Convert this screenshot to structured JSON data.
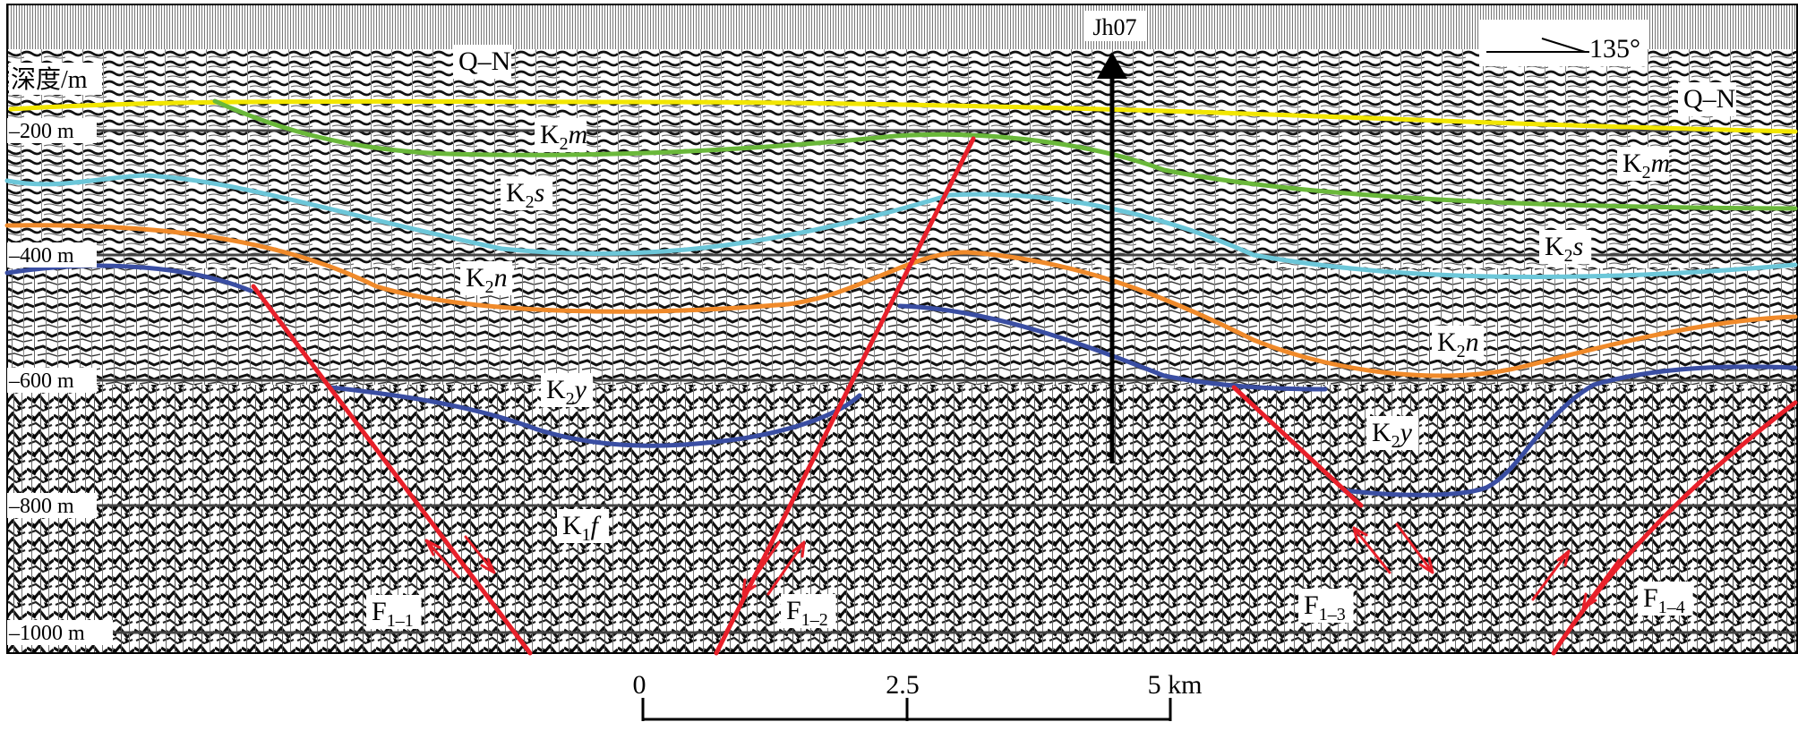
{
  "depth_axis": {
    "title": "深度/m",
    "ticks": [
      "200 m",
      "400 m",
      "600 m",
      "800 m",
      "1000 m"
    ]
  },
  "well": {
    "label": "Jh07"
  },
  "orientation": {
    "label": "135°"
  },
  "formation_labels": [
    {
      "text": "Q–N"
    },
    {
      "text": "Q–N"
    },
    {
      "text": "K",
      "sub": "2",
      "it": "m"
    },
    {
      "text": "K",
      "sub": "2",
      "it": "m"
    },
    {
      "text": "K",
      "sub": "2",
      "it": "s"
    },
    {
      "text": "K",
      "sub": "2",
      "it": "s"
    },
    {
      "text": "K",
      "sub": "2",
      "it": "n"
    },
    {
      "text": "K",
      "sub": "2",
      "it": "n"
    },
    {
      "text": "K",
      "sub": "2",
      "it": "y"
    },
    {
      "text": "K",
      "sub": "2",
      "it": "y"
    },
    {
      "text": "K",
      "sub": "1",
      "it": "f"
    }
  ],
  "faults": [
    {
      "text": "F",
      "sub": "1–1"
    },
    {
      "text": "F",
      "sub": "1–2"
    },
    {
      "text": "F",
      "sub": "1–3"
    },
    {
      "text": "F",
      "sub": "1–4"
    }
  ],
  "horizon_colors": {
    "Q-N": "#f2e600",
    "K2m": "#6ab83a",
    "K2s": "#6cc7d9",
    "K2n": "#f08a2a",
    "K2y": "#3a4ea3",
    "fault": "#e8202a"
  },
  "scale_bar": {
    "ticks": [
      "0",
      "2.5",
      "5 km"
    ]
  }
}
